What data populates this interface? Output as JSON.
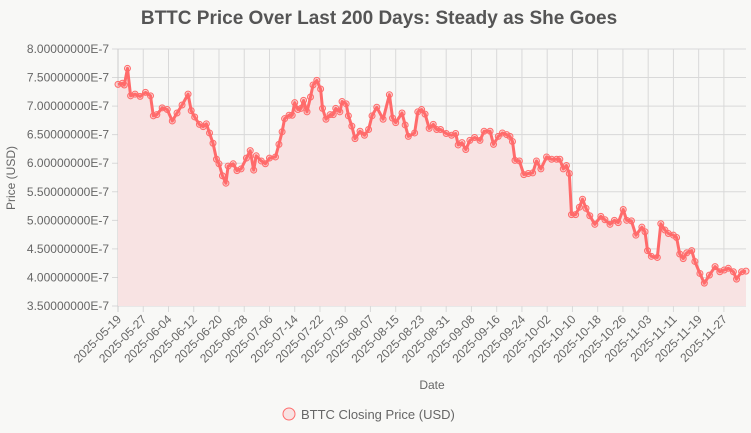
{
  "chart_data": {
    "type": "line",
    "title": "BTTC Price Over Last 200 Days: Steady as She Goes",
    "xlabel": "Date",
    "ylabel": "Price (USD)",
    "x_unit": "days since 2025-05-19",
    "value_scale": 1e-07,
    "ylim": [
      3.5,
      8.0
    ],
    "xlim": [
      0,
      199
    ],
    "y_ticks": [
      {
        "value": 8.0,
        "label": "8.00000000E-7"
      },
      {
        "value": 7.5,
        "label": "7.50000000E-7"
      },
      {
        "value": 7.0,
        "label": "7.00000000E-7"
      },
      {
        "value": 6.5,
        "label": "6.50000000E-7"
      },
      {
        "value": 6.0,
        "label": "6.00000000E-7"
      },
      {
        "value": 5.5,
        "label": "5.50000000E-7"
      },
      {
        "value": 5.0,
        "label": "5.00000000E-7"
      },
      {
        "value": 4.5,
        "label": "4.50000000E-7"
      },
      {
        "value": 4.0,
        "label": "4.00000000E-7"
      },
      {
        "value": 3.5,
        "label": "3.50000000E-7"
      }
    ],
    "x_ticks": [
      "2025-05-19",
      "2025-05-27",
      "2025-06-04",
      "2025-06-12",
      "2025-06-20",
      "2025-06-28",
      "2025-07-06",
      "2025-07-14",
      "2025-07-22",
      "2025-07-30",
      "2025-08-07",
      "2025-08-15",
      "2025-08-23",
      "2025-08-31",
      "2025-09-08",
      "2025-09-16",
      "2025-09-24",
      "2025-10-02",
      "2025-10-10",
      "2025-10-18",
      "2025-10-26",
      "2025-11-03",
      "2025-11-11",
      "2025-11-19",
      "2025-11-27"
    ],
    "x_tick_step_days": 8,
    "grid": true,
    "legend_position": "bottom",
    "series": [
      {
        "name": "BTTC Closing Price (USD)",
        "color": "#ff6b6b",
        "fill": "#f8e3e3",
        "x": [
          0,
          1.4,
          2,
          3,
          4,
          5.4,
          7,
          8.7,
          10.3,
          11.2,
          12.3,
          14,
          15.6,
          17.2,
          18.7,
          20.3,
          22.2,
          23.2,
          24.3,
          25.8,
          27,
          28,
          29,
          30.1,
          31.2,
          32,
          33.1,
          34.2,
          34.9,
          36.5,
          37.7,
          39,
          40.7,
          41.9,
          43,
          43.8,
          45.4,
          46.7,
          48,
          49.9,
          51,
          52,
          52.8,
          54.2,
          55.2,
          56,
          57,
          58,
          58.8,
          59.9,
          61,
          61.8,
          63,
          64.2,
          64.8,
          65.9,
          67.2,
          68.2,
          69,
          70.3,
          71,
          72.3,
          73,
          74.1,
          75.1,
          76.7,
          78.1,
          79.4,
          80.5,
          82,
          84,
          86,
          87,
          88,
          90,
          91,
          92,
          94,
          95,
          96.2,
          97.3,
          98.6,
          99.9,
          101,
          102.2,
          104,
          105.7,
          107,
          107.8,
          109,
          110.2,
          111.5,
          113,
          114.7,
          116,
          117.9,
          119,
          120.5,
          121.8,
          123.2,
          124.2,
          125,
          125.8,
          127.2,
          128.6,
          130,
          131.4,
          132.6,
          134,
          135.8,
          137.4,
          139,
          140,
          141.1,
          142.1,
          143,
          143.7,
          145,
          146.2,
          147.2,
          148.3,
          149.5,
          151.1,
          153,
          154.3,
          155.9,
          157.3,
          158.5,
          160.1,
          161.2,
          162.7,
          164.1,
          166,
          167,
          167.8,
          169,
          170.9,
          172,
          173.3,
          174.4,
          176,
          177,
          178,
          179.1,
          180.2,
          181.8,
          182.8,
          184.4,
          185.8,
          187.4,
          189.2,
          190.7,
          192.1,
          193.4,
          195,
          196,
          197.6,
          199
        ],
        "values": [
          7.38,
          7.4,
          7.37,
          7.66,
          7.18,
          7.21,
          7.17,
          7.24,
          7.18,
          6.83,
          6.85,
          6.97,
          6.94,
          6.74,
          6.88,
          7.02,
          7.21,
          6.92,
          6.81,
          6.68,
          6.64,
          6.69,
          6.53,
          6.35,
          6.07,
          5.99,
          5.78,
          5.65,
          5.95,
          5.99,
          5.87,
          5.9,
          6.09,
          6.22,
          5.88,
          6.13,
          6.04,
          5.99,
          6.09,
          6.11,
          6.33,
          6.55,
          6.78,
          6.84,
          6.84,
          7.06,
          6.94,
          6.96,
          7.1,
          6.9,
          7.16,
          7.37,
          7.45,
          7.3,
          6.96,
          6.77,
          6.85,
          6.85,
          6.96,
          6.9,
          7.08,
          7.04,
          6.83,
          6.65,
          6.43,
          6.56,
          6.49,
          6.59,
          6.83,
          6.98,
          6.77,
          7.2,
          6.79,
          6.71,
          6.88,
          6.67,
          6.47,
          6.53,
          6.9,
          6.94,
          6.86,
          6.61,
          6.68,
          6.59,
          6.59,
          6.52,
          6.49,
          6.52,
          6.32,
          6.36,
          6.24,
          6.4,
          6.45,
          6.4,
          6.56,
          6.56,
          6.33,
          6.47,
          6.53,
          6.5,
          6.47,
          6.38,
          6.05,
          6.04,
          5.8,
          5.82,
          5.83,
          6.04,
          5.9,
          6.11,
          6.07,
          6.07,
          6.07,
          5.9,
          5.96,
          5.82,
          5.1,
          5.1,
          5.23,
          5.37,
          5.21,
          5.08,
          4.93,
          5.07,
          5.01,
          4.93,
          5.0,
          4.96,
          5.19,
          5.0,
          4.99,
          4.74,
          4.88,
          4.8,
          4.47,
          4.37,
          4.35,
          4.94,
          4.83,
          4.77,
          4.74,
          4.7,
          4.41,
          4.33,
          4.43,
          4.47,
          4.28,
          4.07,
          3.9,
          4.04,
          4.19,
          4.1,
          4.13,
          4.16,
          4.1,
          3.97,
          4.1,
          4.11
        ]
      }
    ]
  }
}
